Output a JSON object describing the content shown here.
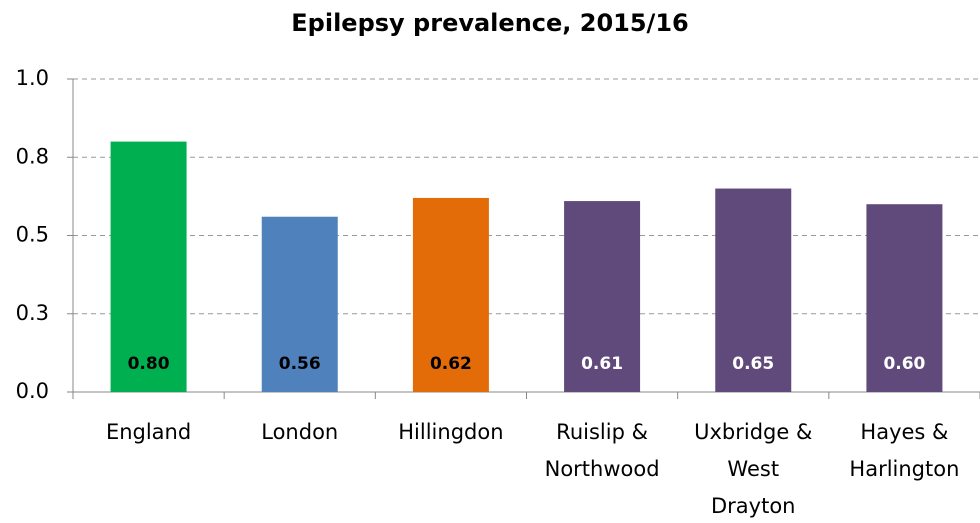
{
  "chart_data": {
    "type": "bar",
    "title": "Epilepsy prevalence, 2015/16",
    "categories": [
      "England",
      "London",
      "Hillingdon",
      "Ruislip &\nNorthwood",
      "Uxbridge &\nWest\nDrayton",
      "Hayes &\nHarlington"
    ],
    "values": [
      0.8,
      0.56,
      0.62,
      0.61,
      0.65,
      0.6
    ],
    "value_labels": [
      "0.80",
      "0.56",
      "0.62",
      "0.61",
      "0.65",
      "0.60"
    ],
    "colors": [
      "#00b050",
      "#4f81bd",
      "#e36c09",
      "#604a7b",
      "#604a7b",
      "#604a7b"
    ],
    "label_colors": [
      "#000000",
      "#000000",
      "#000000",
      "#ffffff",
      "#ffffff",
      "#ffffff"
    ],
    "ylim": [
      0,
      1
    ],
    "yticks": [
      {
        "value": 0,
        "label": "0.0"
      },
      {
        "value": 0.25,
        "label": "0.3"
      },
      {
        "value": 0.5,
        "label": "0.5"
      },
      {
        "value": 0.75,
        "label": "0.8"
      },
      {
        "value": 1,
        "label": "1.0"
      }
    ],
    "grid": true
  }
}
